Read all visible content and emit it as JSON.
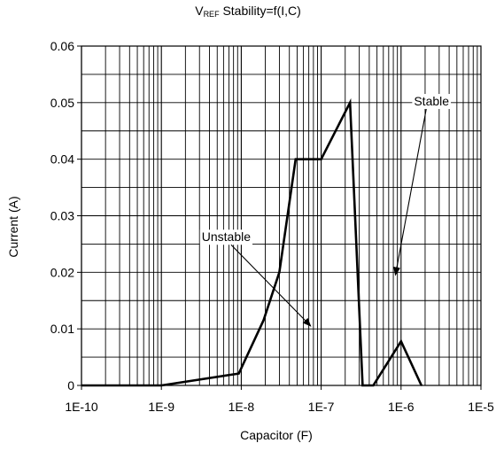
{
  "chart_data": {
    "type": "line",
    "title": {
      "prefix": "V",
      "subscript": "REF",
      "suffix": " Stability=f(I,C)"
    },
    "xlabel": "Capacitor (F)",
    "ylabel": "Current (A)",
    "x_scale": "log",
    "xlim": [
      1e-10,
      1e-05
    ],
    "ylim": [
      0,
      0.06
    ],
    "x_ticks": [
      1e-10,
      1e-09,
      1e-08,
      1e-07,
      1e-06,
      1e-05
    ],
    "x_tick_labels": [
      "1E-10",
      "1E-9",
      "1E-8",
      "1E-7",
      "1E-6",
      "1E-5"
    ],
    "y_ticks": [
      0,
      0.01,
      0.02,
      0.03,
      0.04,
      0.05,
      0.06
    ],
    "y_tick_labels": [
      "0",
      "0.01",
      "0.02",
      "0.03",
      "0.04",
      "0.05",
      "0.06"
    ],
    "grid": true,
    "series": [
      {
        "points": [
          [
            1e-10,
            0
          ],
          [
            1e-09,
            0
          ],
          [
            9.3e-09,
            0.0021
          ],
          [
            1.9e-08,
            0.0115
          ],
          [
            3e-08,
            0.02
          ],
          [
            4.8e-08,
            0.04
          ],
          [
            1e-07,
            0.04
          ],
          [
            2.3e-07,
            0.05
          ],
          [
            3.3e-07,
            0
          ],
          [
            4.5e-07,
            0
          ],
          [
            1e-06,
            0.0078
          ],
          [
            1.8e-06,
            0
          ]
        ]
      }
    ],
    "annotations": [
      {
        "text": "Unstable",
        "label_x": 3.2e-09,
        "label_y": 0.0255,
        "arrow_to_x": 7.4e-08,
        "arrow_to_y": 0.0105
      },
      {
        "text": "Stable",
        "label_x": 1.45e-06,
        "label_y": 0.0495,
        "arrow_to_x": 8.5e-07,
        "arrow_to_y": 0.0195
      }
    ]
  }
}
